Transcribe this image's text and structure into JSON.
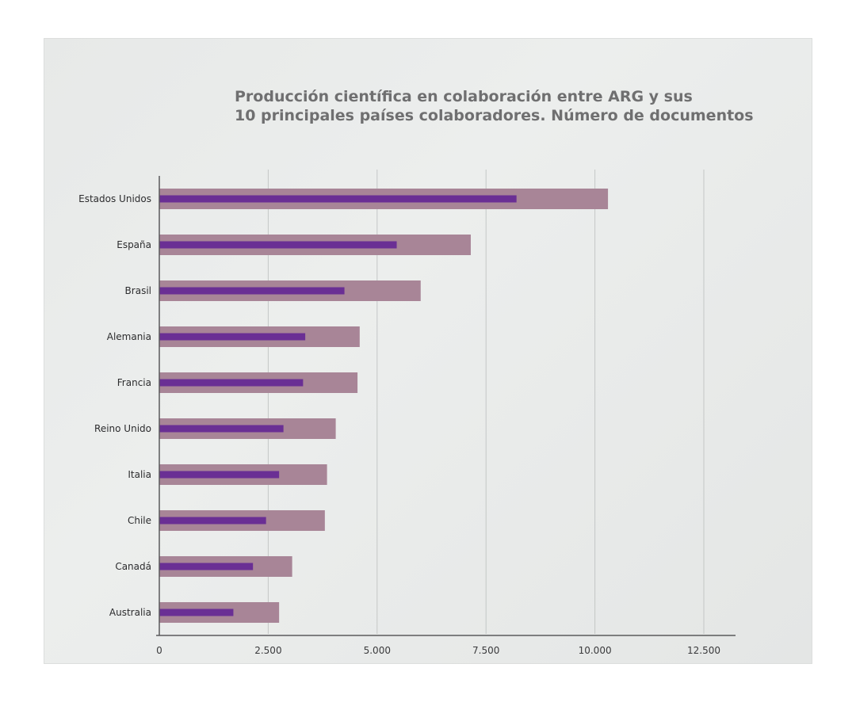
{
  "chart_data": {
    "type": "bar",
    "orientation": "horizontal",
    "title_line1": "Producción científica en colaboración entre ARG y sus",
    "title_line2": "10 principales países colaboradores. Número de documentos",
    "categories": [
      "Estados Unidos",
      "España",
      "Brasil",
      "Alemania",
      "Francia",
      "Reino Unido",
      "Italia",
      "Chile",
      "Canadá",
      "Australia"
    ],
    "series": [
      {
        "values": [
          10300,
          7150,
          6000,
          4600,
          4550,
          4050,
          3850,
          3800,
          3050,
          2750
        ]
      },
      {
        "values": [
          8200,
          5450,
          4250,
          3350,
          3300,
          2850,
          2750,
          2450,
          2150,
          1700
        ]
      }
    ],
    "x_ticks": [
      0,
      2500,
      5000,
      7500,
      10000,
      12500
    ],
    "x_tick_labels": [
      "0",
      "2.500",
      "5.000",
      "7.500",
      "10.000",
      "12.500"
    ],
    "xlim": [
      0,
      12500
    ],
    "grid": true,
    "colors": {
      "outer_bar": "#a88597",
      "inner_bar": "#6a2f94",
      "gridline": "#c4c7c6",
      "axis": "#5a5a5c"
    }
  }
}
